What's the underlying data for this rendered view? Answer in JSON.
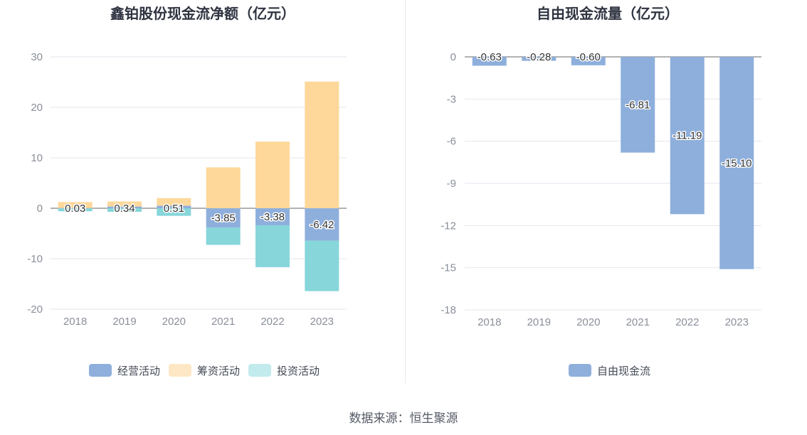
{
  "chart_data": [
    {
      "type": "bar",
      "stacked": true,
      "title": "鑫铂股份现金流净额（亿元）",
      "categories": [
        "2018",
        "2019",
        "2020",
        "2021",
        "2022",
        "2023"
      ],
      "series": [
        {
          "name": "经营活动",
          "color": "#8eafdc",
          "values": [
            0.03,
            0.34,
            0.51,
            -3.85,
            -3.38,
            -6.42
          ],
          "labels": [
            "0.03",
            "0.34",
            "0.51",
            "-3.85",
            "-3.38",
            "-6.42"
          ]
        },
        {
          "name": "筹资活动",
          "color": "#fdd89a",
          "values": [
            1.2,
            1.0,
            1.5,
            8.1,
            13.2,
            25.1
          ]
        },
        {
          "name": "投资活动",
          "color": "#86d6da",
          "values": [
            -0.6,
            -0.7,
            -1.5,
            -3.4,
            -8.3,
            -10.0
          ]
        }
      ],
      "legend_colors": [
        "#8eafdc",
        "#fde7c4",
        "#c2ebee"
      ],
      "yticks": [
        30,
        20,
        10,
        0,
        -10,
        -20
      ],
      "ylim": [
        -20,
        30
      ],
      "legend_position": "bottom"
    },
    {
      "type": "bar",
      "title": "自由现金流量（亿元）",
      "categories": [
        "2018",
        "2019",
        "2020",
        "2021",
        "2022",
        "2023"
      ],
      "series": [
        {
          "name": "自由现金流",
          "color": "#8eafdc",
          "values": [
            -0.63,
            -0.28,
            -0.6,
            -6.81,
            -11.19,
            -15.1
          ],
          "labels": [
            "-0.63",
            "-0.28",
            "-0.60",
            "-6.81",
            "-11.19",
            "-15.10"
          ]
        }
      ],
      "legend_colors": [
        "#8eafdc"
      ],
      "yticks": [
        0,
        -3,
        -6,
        -9,
        -12,
        -15,
        -18
      ],
      "ylim": [
        -18,
        0
      ],
      "legend_position": "bottom"
    }
  ],
  "footer": {
    "source": "数据来源：恒生聚源"
  }
}
